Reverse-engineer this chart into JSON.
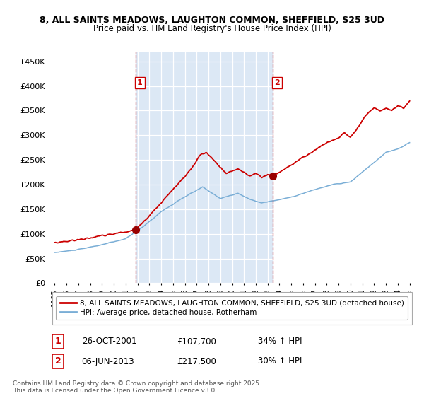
{
  "title1": "8, ALL SAINTS MEADOWS, LAUGHTON COMMON, SHEFFIELD, S25 3UD",
  "title2": "Price paid vs. HM Land Registry's House Price Index (HPI)",
  "legend_line1": "8, ALL SAINTS MEADOWS, LAUGHTON COMMON, SHEFFIELD, S25 3UD (detached house)",
  "legend_line2": "HPI: Average price, detached house, Rotherham",
  "annotation1_label": "1",
  "annotation1_date": "26-OCT-2001",
  "annotation1_price": "£107,700",
  "annotation1_hpi": "34% ↑ HPI",
  "annotation2_label": "2",
  "annotation2_date": "06-JUN-2013",
  "annotation2_price": "£217,500",
  "annotation2_hpi": "30% ↑ HPI",
  "footer": "Contains HM Land Registry data © Crown copyright and database right 2025.\nThis data is licensed under the Open Government Licence v3.0.",
  "vline1_x": 2001.82,
  "vline2_x": 2013.43,
  "sale1_x": 2001.82,
  "sale1_y": 107700,
  "sale2_x": 2013.43,
  "sale2_y": 217500,
  "red_color": "#cc0000",
  "blue_color": "#7aaed6",
  "vline_color": "#cc0000",
  "shade_color": "#dce8f5",
  "background_color": "#ffffff",
  "ylim": [
    0,
    470000
  ],
  "xlim": [
    1994.5,
    2025.5
  ],
  "yticks": [
    0,
    50000,
    100000,
    150000,
    200000,
    250000,
    300000,
    350000,
    400000,
    450000
  ],
  "xticks": [
    1995,
    1996,
    1997,
    1998,
    1999,
    2000,
    2001,
    2002,
    2003,
    2004,
    2005,
    2006,
    2007,
    2008,
    2009,
    2010,
    2011,
    2012,
    2013,
    2014,
    2015,
    2016,
    2017,
    2018,
    2019,
    2020,
    2021,
    2022,
    2023,
    2024,
    2025
  ]
}
